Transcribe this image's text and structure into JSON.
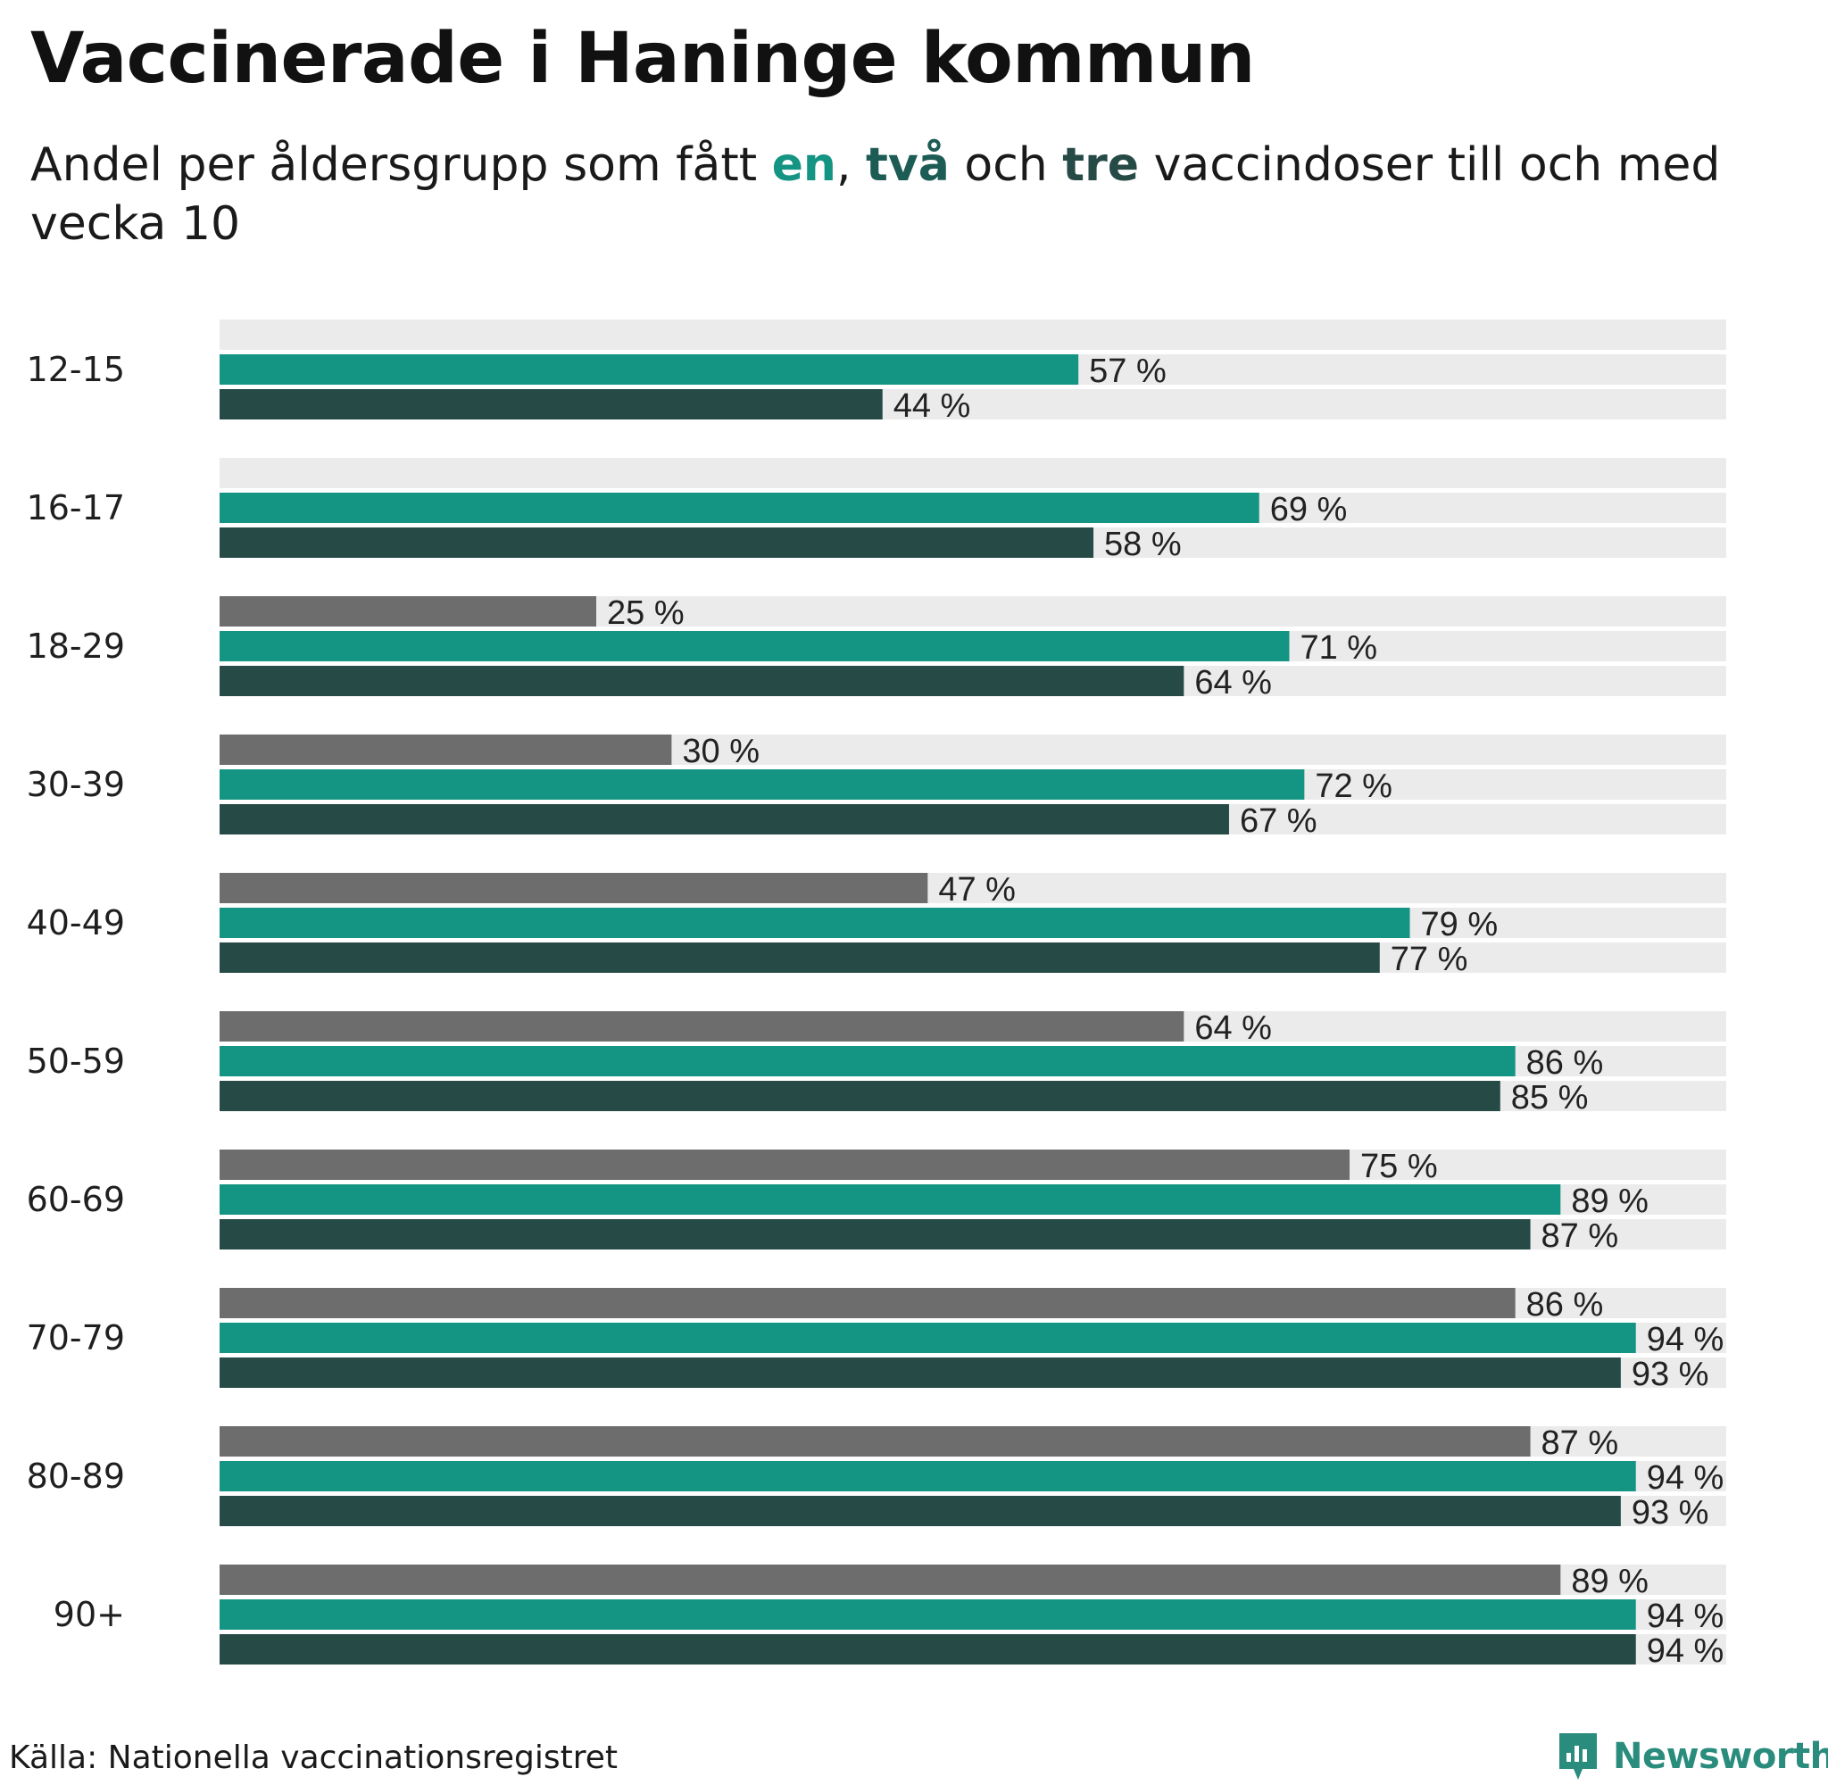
{
  "title": "Vaccinerade i Haninge kommun",
  "subtitle": {
    "prefix": "Andel per åldersgrupp som fått ",
    "en": "en",
    "sep": ", ",
    "tva": "två",
    "och": " och ",
    "tre": "tre",
    "suffix": " vaccindoser till och med vecka 10"
  },
  "source": "Källa: Nationella vaccinationsregistret",
  "brand": "Newsworthy",
  "colors": {
    "dose1": "#6d6d6d",
    "dose2": "#149482",
    "dose3": "#264a46",
    "track": "#ebebeb",
    "brand": "#2a8c7d",
    "en": "#149482",
    "tva": "#1d5c55",
    "tre": "#264a46"
  },
  "chart_data": {
    "type": "bar",
    "orientation": "horizontal",
    "categories": [
      "12-15",
      "16-17",
      "18-29",
      "30-39",
      "40-49",
      "50-59",
      "60-69",
      "70-79",
      "80-89",
      "90+"
    ],
    "value_suffix": " %",
    "xlim": [
      0,
      100
    ],
    "series": [
      {
        "name": "tre",
        "color": "#6d6d6d",
        "values": [
          null,
          null,
          25,
          30,
          47,
          64,
          75,
          86,
          87,
          89
        ]
      },
      {
        "name": "en",
        "color": "#149482",
        "values": [
          57,
          69,
          71,
          72,
          79,
          86,
          89,
          94,
          94,
          94
        ]
      },
      {
        "name": "två",
        "color": "#264a46",
        "values": [
          44,
          58,
          64,
          67,
          77,
          85,
          87,
          93,
          93,
          94
        ]
      }
    ]
  }
}
